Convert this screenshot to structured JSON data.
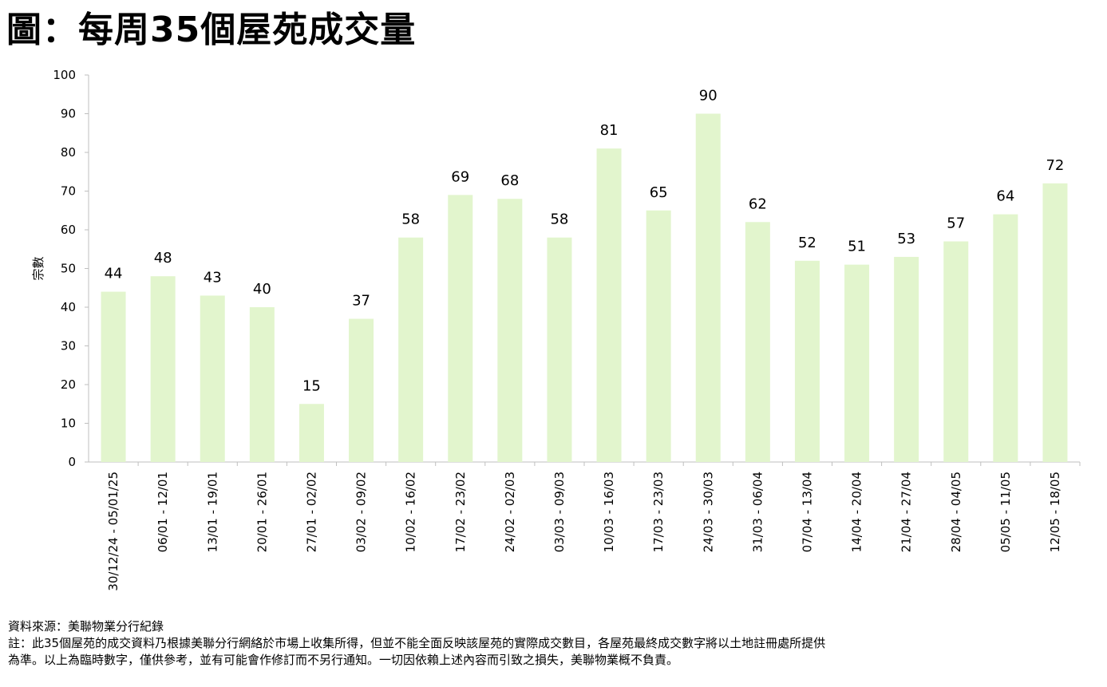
{
  "title": "圖：每周35個屋苑成交量",
  "chart_data": {
    "type": "bar",
    "ylabel": "宗數",
    "xlabel": "",
    "ylim": [
      0,
      100
    ],
    "yticks": [
      0,
      10,
      20,
      30,
      40,
      50,
      60,
      70,
      80,
      90,
      100
    ],
    "grid": false,
    "bar_color": "#e2f5cd",
    "categories": [
      "30/12/24 - 05/01/25",
      "06/01 - 12/01",
      "13/01 - 19/01",
      "20/01 - 26/01",
      "27/01 - 02/02",
      "03/02 - 09/02",
      "10/02 - 16/02",
      "17/02 - 23/02",
      "24/02 - 02/03",
      "03/03 - 09/03",
      "10/03 - 16/03",
      "17/03 - 23/03",
      "24/03 - 30/03",
      "31/03 - 06/04",
      "07/04 - 13/04",
      "14/04 - 20/04",
      "21/04 - 27/04",
      "28/04 - 04/05",
      "05/05 - 11/05",
      "12/05 - 18/05"
    ],
    "values": [
      44,
      48,
      43,
      40,
      15,
      37,
      58,
      69,
      68,
      58,
      81,
      65,
      90,
      62,
      52,
      51,
      53,
      57,
      64,
      72
    ]
  },
  "footer": {
    "source": "資料來源：美聯物業分行紀錄",
    "note_line1": "註：此35個屋苑的成交資料乃根據美聯分行網絡於市場上收集所得，但並不能全面反映該屋苑的實際成交數目，各屋苑最終成交數字將以土地註冊處所提供",
    "note_line2": "為準。以上為臨時數字，僅供參考，並有可能會作修訂而不另行通知。一切因依賴上述內容而引致之損失，美聯物業概不負責。"
  }
}
